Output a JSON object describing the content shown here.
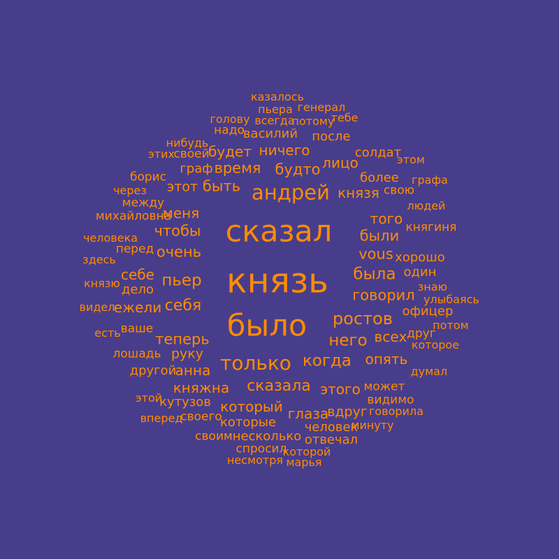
{
  "colors": {
    "background": "#483d8b",
    "word": "#ff8c00"
  },
  "words": [
    {
      "text": "казалось",
      "weight": 0.12
    },
    {
      "text": "пьера",
      "weight": 0.12
    },
    {
      "text": "генерал",
      "weight": 0.12
    },
    {
      "text": "голову",
      "weight": 0.12
    },
    {
      "text": "всегда",
      "weight": 0.12
    },
    {
      "text": "потому",
      "weight": 0.12
    },
    {
      "text": "тебе",
      "weight": 0.1
    },
    {
      "text": "надо",
      "weight": 0.14
    },
    {
      "text": "василий",
      "weight": 0.16
    },
    {
      "text": "после",
      "weight": 0.16
    },
    {
      "text": "нибудь",
      "weight": 0.12
    },
    {
      "text": "будет",
      "weight": 0.19
    },
    {
      "text": "ничего",
      "weight": 0.19
    },
    {
      "text": "этих",
      "weight": 0.12
    },
    {
      "text": "своей",
      "weight": 0.13
    },
    {
      "text": "солдат",
      "weight": 0.15
    },
    {
      "text": "этом",
      "weight": 0.11
    },
    {
      "text": "время",
      "weight": 0.22
    },
    {
      "text": "будто",
      "weight": 0.22
    },
    {
      "text": "лицо",
      "weight": 0.21
    },
    {
      "text": "граф",
      "weight": 0.15
    },
    {
      "text": "борис",
      "weight": 0.13
    },
    {
      "text": "более",
      "weight": 0.16
    },
    {
      "text": "графа",
      "weight": 0.11
    },
    {
      "text": "этот",
      "weight": 0.17
    },
    {
      "text": "быть",
      "weight": 0.22
    },
    {
      "text": "андрей",
      "weight": 0.4
    },
    {
      "text": "князя",
      "weight": 0.19
    },
    {
      "text": "свою",
      "weight": 0.13
    },
    {
      "text": "через",
      "weight": 0.12
    },
    {
      "text": "между",
      "weight": 0.13
    },
    {
      "text": "людей",
      "weight": 0.12
    },
    {
      "text": "михайловна",
      "weight": 0.13
    },
    {
      "text": "меня",
      "weight": 0.2
    },
    {
      "text": "того",
      "weight": 0.19
    },
    {
      "text": "сказал",
      "weight": 0.72
    },
    {
      "text": "чтобы",
      "weight": 0.22
    },
    {
      "text": "княгиня",
      "weight": 0.14
    },
    {
      "text": "человека",
      "weight": 0.12
    },
    {
      "text": "были",
      "weight": 0.23
    },
    {
      "text": "перед",
      "weight": 0.14
    },
    {
      "text": "очень",
      "weight": 0.22
    },
    {
      "text": "здесь",
      "weight": 0.12
    },
    {
      "text": "vous",
      "weight": 0.22
    },
    {
      "text": "хорошо",
      "weight": 0.15
    },
    {
      "text": "один",
      "weight": 0.15
    },
    {
      "text": "себе",
      "weight": 0.19
    },
    {
      "text": "пьер",
      "weight": 0.27
    },
    {
      "text": "князь",
      "weight": 0.85
    },
    {
      "text": "была",
      "weight": 0.27
    },
    {
      "text": "князю",
      "weight": 0.11
    },
    {
      "text": "знаю",
      "weight": 0.12
    },
    {
      "text": "дело",
      "weight": 0.16
    },
    {
      "text": "говорил",
      "weight": 0.23
    },
    {
      "text": "улыбаясь",
      "weight": 0.12
    },
    {
      "text": "видел",
      "weight": 0.12
    },
    {
      "text": "ежели",
      "weight": 0.19
    },
    {
      "text": "себя",
      "weight": 0.24
    },
    {
      "text": "офицер",
      "weight": 0.16
    },
    {
      "text": "было",
      "weight": 0.72
    },
    {
      "text": "ростов",
      "weight": 0.29
    },
    {
      "text": "ваше",
      "weight": 0.14
    },
    {
      "text": "потом",
      "weight": 0.11
    },
    {
      "text": "друг",
      "weight": 0.14
    },
    {
      "text": "есть",
      "weight": 0.12
    },
    {
      "text": "теперь",
      "weight": 0.23
    },
    {
      "text": "него",
      "weight": 0.27
    },
    {
      "text": "всех",
      "weight": 0.21
    },
    {
      "text": "которое",
      "weight": 0.11
    },
    {
      "text": "лошадь",
      "weight": 0.14
    },
    {
      "text": "руку",
      "weight": 0.17
    },
    {
      "text": "только",
      "weight": 0.37
    },
    {
      "text": "когда",
      "weight": 0.27
    },
    {
      "text": "опять",
      "weight": 0.2
    },
    {
      "text": "другой",
      "weight": 0.16
    },
    {
      "text": "анна",
      "weight": 0.19
    },
    {
      "text": "думал",
      "weight": 0.12
    },
    {
      "text": "княжна",
      "weight": 0.19
    },
    {
      "text": "сказала",
      "weight": 0.25
    },
    {
      "text": "этого",
      "weight": 0.21
    },
    {
      "text": "может",
      "weight": 0.14
    },
    {
      "text": "этой",
      "weight": 0.12
    },
    {
      "text": "видимо",
      "weight": 0.13
    },
    {
      "text": "кутузов",
      "weight": 0.16
    },
    {
      "text": "который",
      "weight": 0.2
    },
    {
      "text": "глаза",
      "weight": 0.19
    },
    {
      "text": "вдруг",
      "weight": 0.17
    },
    {
      "text": "говорила",
      "weight": 0.12
    },
    {
      "text": "вперед",
      "weight": 0.12
    },
    {
      "text": "своего",
      "weight": 0.13
    },
    {
      "text": "которые",
      "weight": 0.15
    },
    {
      "text": "человек",
      "weight": 0.16
    },
    {
      "text": "минуту",
      "weight": 0.12
    },
    {
      "text": "своим",
      "weight": 0.14
    },
    {
      "text": "несколько",
      "weight": 0.16
    },
    {
      "text": "отвечал",
      "weight": 0.15
    },
    {
      "text": "спросил",
      "weight": 0.14
    },
    {
      "text": "которой",
      "weight": 0.12
    },
    {
      "text": "несмотря",
      "weight": 0.12
    },
    {
      "text": "марья",
      "weight": 0.12
    }
  ]
}
